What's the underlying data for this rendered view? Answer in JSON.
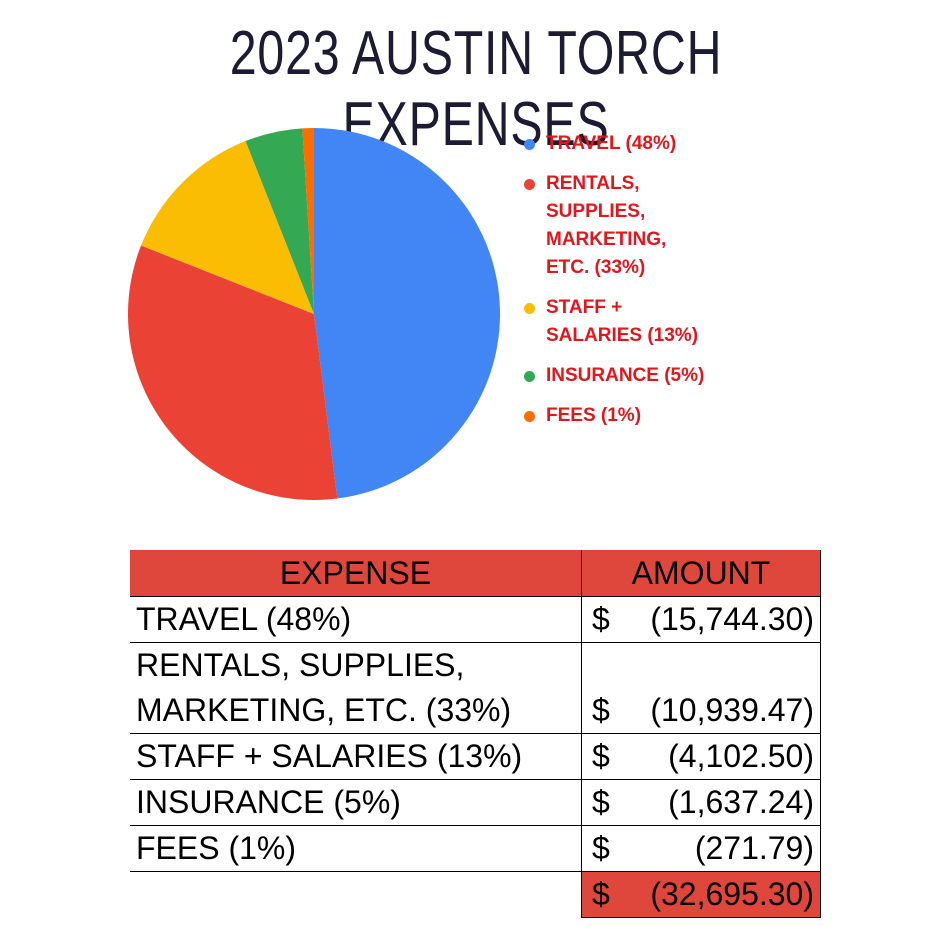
{
  "chart_data": {
    "type": "pie",
    "title": "2023 AUSTIN TORCH EXPENSES",
    "categories": [
      "TRAVEL (48%)",
      "RENTALS, SUPPLIES, MARKETING, ETC. (33%)",
      "STAFF + SALARIES (13%)",
      "INSURANCE (5%)",
      "FEES (1%)"
    ],
    "values": [
      48,
      33,
      13,
      5,
      1
    ],
    "colors": [
      "#4285f4",
      "#ea4335",
      "#fbbc04",
      "#34a853",
      "#ff6d01"
    ]
  },
  "table": {
    "header": [
      "EXPENSE",
      "AMOUNT"
    ],
    "rows": [
      {
        "label": "TRAVEL (48%)",
        "currency": "$",
        "amount": "(15,744.30)"
      },
      {
        "label": "RENTALS, SUPPLIES, MARKETING, ETC. (33%)",
        "currency": "$",
        "amount": "(10,939.47)"
      },
      {
        "label": "STAFF + SALARIES (13%)",
        "currency": "$",
        "amount": "(4,102.50)"
      },
      {
        "label": "INSURANCE (5%)",
        "currency": "$",
        "amount": "(1,637.24)"
      },
      {
        "label": "FEES (1%)",
        "currency": "$",
        "amount": "(271.79)"
      }
    ],
    "total": {
      "currency": "$",
      "amount": "(32,695.30)"
    }
  }
}
